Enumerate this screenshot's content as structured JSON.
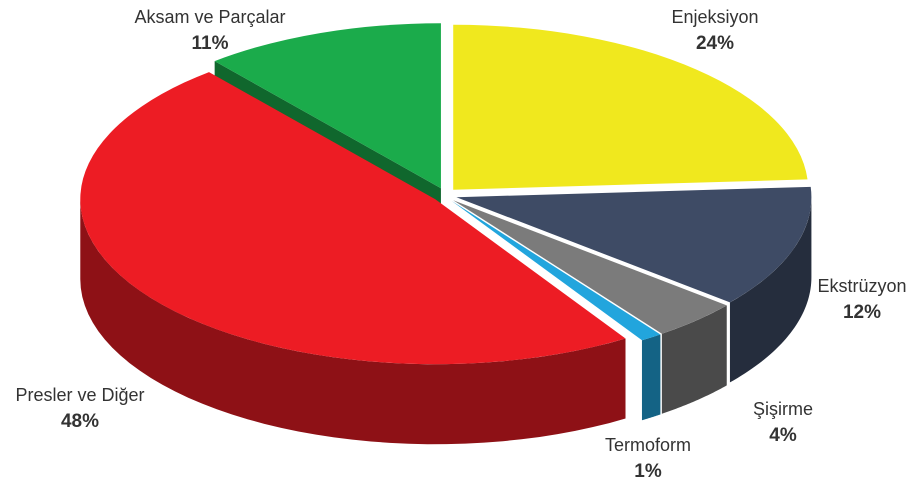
{
  "chart_data": {
    "type": "pie",
    "categories": [
      "Enjeksiyon",
      "Ekstrüzyon",
      "Şişirme",
      "Termoform",
      "Presler ve Diğer",
      "Aksam ve Parçalar"
    ],
    "values": [
      24,
      12,
      4,
      1,
      48,
      11
    ],
    "value_labels": [
      "24%",
      "12%",
      "4%",
      "1%",
      "48%",
      "11%"
    ],
    "colors": [
      "#f0e81e",
      "#3e4b65",
      "#7b7b7b",
      "#22a5dd",
      "#ed1c24",
      "#1bab4b"
    ]
  }
}
